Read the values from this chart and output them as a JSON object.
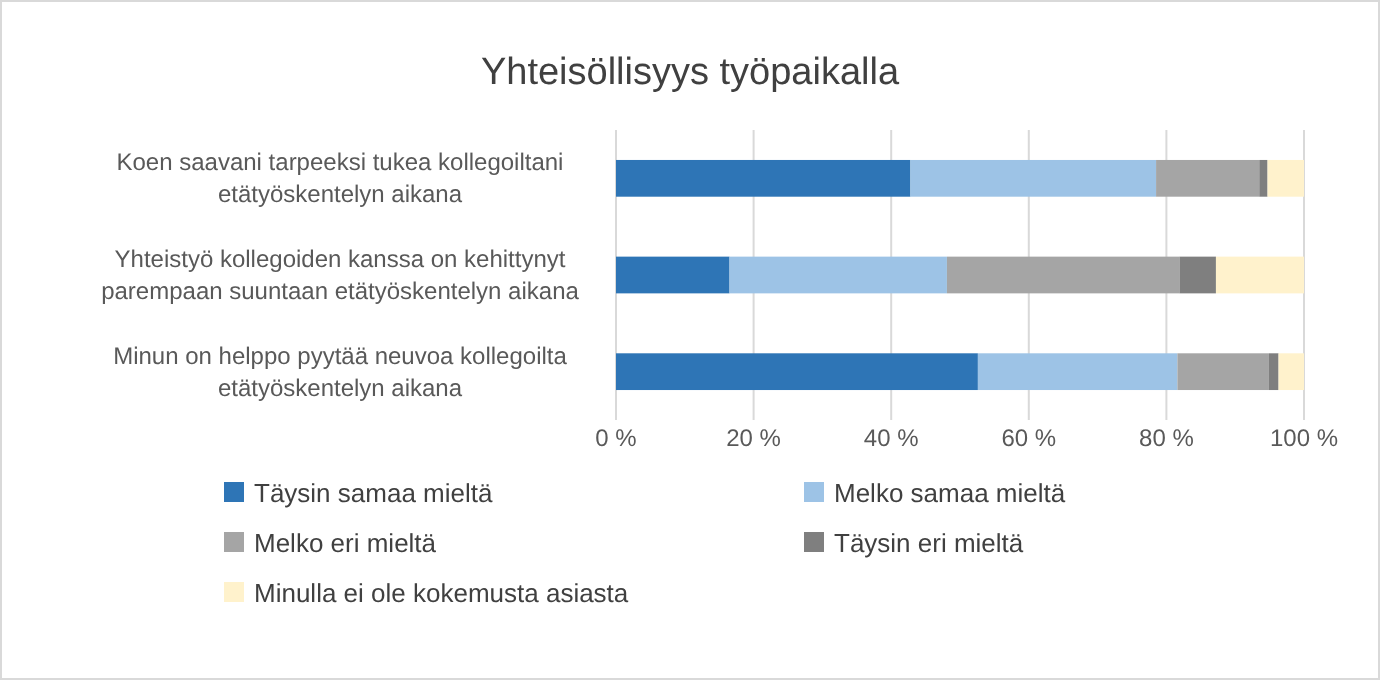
{
  "chart_data": {
    "type": "bar",
    "title": "Yhteisöllisyys työpaikalla",
    "orientation": "horizontal",
    "stacked": true,
    "categories": [
      "Koen saavani tarpeeksi tukea kollegoiltani etätyöskentelyn aikana",
      "Yhteistyö kollegoiden kanssa on kehittynyt parempaan suuntaan  etätyöskentelyn aikana",
      "Minun on helppo pyytää neuvoa kollegoilta etätyöskentelyn aikana"
    ],
    "series": [
      {
        "name": "Täysin samaa mieltä",
        "color": "#2e75b6",
        "values": [
          42.8,
          16.5,
          52.6
        ]
      },
      {
        "name": "Melko samaa mieltä",
        "color": "#9dc3e6",
        "values": [
          35.7,
          31.6,
          29.0
        ]
      },
      {
        "name": "Melko eri mieltä",
        "color": "#a5a5a5",
        "values": [
          15.0,
          33.8,
          13.3
        ]
      },
      {
        "name": "Täysin eri mieltä",
        "color": "#7f7f7f",
        "values": [
          1.2,
          5.3,
          1.4
        ]
      },
      {
        "name": "Minulla ei ole kokemusta asiasta",
        "color": "#fff2cc",
        "values": [
          5.3,
          12.8,
          3.7
        ]
      }
    ],
    "xlim": [
      0,
      100
    ],
    "xticks": [
      {
        "value": 0,
        "label": "0 %"
      },
      {
        "value": 20,
        "label": "20 %"
      },
      {
        "value": 40,
        "label": "40 %"
      },
      {
        "value": 60,
        "label": "60 %"
      },
      {
        "value": 80,
        "label": "80 %"
      },
      {
        "value": 100,
        "label": "100 %"
      }
    ],
    "grid": "x",
    "legend": "bottom"
  }
}
